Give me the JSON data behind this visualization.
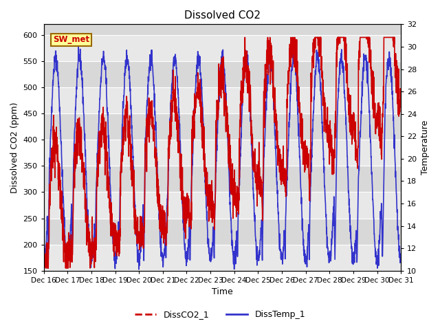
{
  "title": "Dissolved CO2",
  "xlabel": "Time",
  "ylabel_left": "Dissolved CO2 (ppm)",
  "ylabel_right": "Temperature",
  "ylim_left": [
    150,
    620
  ],
  "ylim_right": [
    10,
    32
  ],
  "yticks_left": [
    150,
    200,
    250,
    300,
    350,
    400,
    450,
    500,
    550,
    600
  ],
  "yticks_right": [
    10,
    12,
    14,
    16,
    18,
    20,
    22,
    24,
    26,
    28,
    30,
    32
  ],
  "co2_color": "#cc0000",
  "temp_color": "#3333cc",
  "bg_color": "#ffffff",
  "plot_bg_color": "#d8d8d8",
  "band_color": "#e8e8e8",
  "label_box_color": "#ffff99",
  "label_box_edge": "#996600",
  "label_text": "SW_met",
  "label_text_color": "#cc0000",
  "legend_co2": "DissCO2_1",
  "legend_temp": "DissTemp_1",
  "xticklabels": [
    "Dec 16",
    "Dec 17",
    "Dec 18",
    "Dec 19",
    "Dec 20",
    "Dec 21",
    "Dec 22",
    "Dec 23",
    "Dec 24",
    "Dec 25",
    "Dec 26",
    "Dec 27",
    "Dec 28",
    "Dec 29",
    "Dec 30",
    "Dec 31"
  ],
  "n_days": 16
}
